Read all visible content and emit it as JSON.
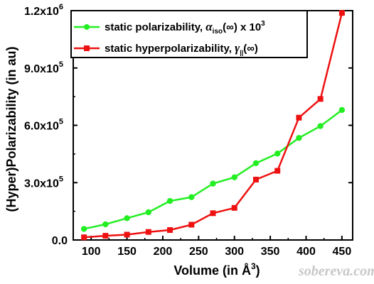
{
  "chart_data": {
    "type": "line",
    "title": "",
    "xlabel": "Volume (in Å³)",
    "xlabel_main": "Volume (in Å",
    "xlabel_sup": "3",
    "xlabel_close": ")",
    "ylabel": "(Hyper)Polarizability (in au)",
    "xlim": [
      75,
      465
    ],
    "ylim": [
      0,
      1200000
    ],
    "xticks": [
      100,
      150,
      200,
      250,
      300,
      350,
      400,
      450
    ],
    "xtick_labels": [
      "100",
      "150",
      "200",
      "250",
      "300",
      "350",
      "400",
      "450"
    ],
    "yticks": [
      0,
      300000,
      600000,
      900000,
      1200000
    ],
    "ytick_labels": [
      {
        "mant": "0.0",
        "exp": ""
      },
      {
        "mant": "3.0x10",
        "exp": "5"
      },
      {
        "mant": "6.0x10",
        "exp": "5"
      },
      {
        "mant": "9.0x10",
        "exp": "5"
      },
      {
        "mant": "1.2x10",
        "exp": "6"
      }
    ],
    "grid": false,
    "legend_position": "top-left",
    "series": [
      {
        "name": "static polarizability, αiso(∞) x 10³",
        "color": "#22ee22",
        "marker": "circle",
        "x": [
          90,
          120,
          150,
          180,
          210,
          240,
          270,
          300,
          330,
          360,
          390,
          420,
          450
        ],
        "y": [
          58000,
          82000,
          114000,
          145000,
          204000,
          224000,
          295000,
          328000,
          402000,
          452000,
          534000,
          596000,
          680000
        ]
      },
      {
        "name": "static hyperpolarizability, γ‖(∞)",
        "color": "#ee1111",
        "marker": "square",
        "x": [
          90,
          120,
          150,
          180,
          210,
          240,
          270,
          300,
          330,
          360,
          390,
          420,
          450
        ],
        "y": [
          14000,
          22000,
          28000,
          42000,
          52000,
          80000,
          140000,
          168000,
          316000,
          362000,
          640000,
          738000,
          1188000
        ]
      }
    ],
    "legend": [
      {
        "text": "static polarizability, ",
        "sym": "α",
        "sub": "iso",
        "tail": "(∞) x 10",
        "sup": "3"
      },
      {
        "text": "static hyperpolarizability, ",
        "sym": "γ",
        "sub": "||",
        "tail": "(∞)",
        "sup": ""
      }
    ]
  },
  "watermark": {
    "text": "sobereva.com",
    "color": "#c8c8c8"
  }
}
